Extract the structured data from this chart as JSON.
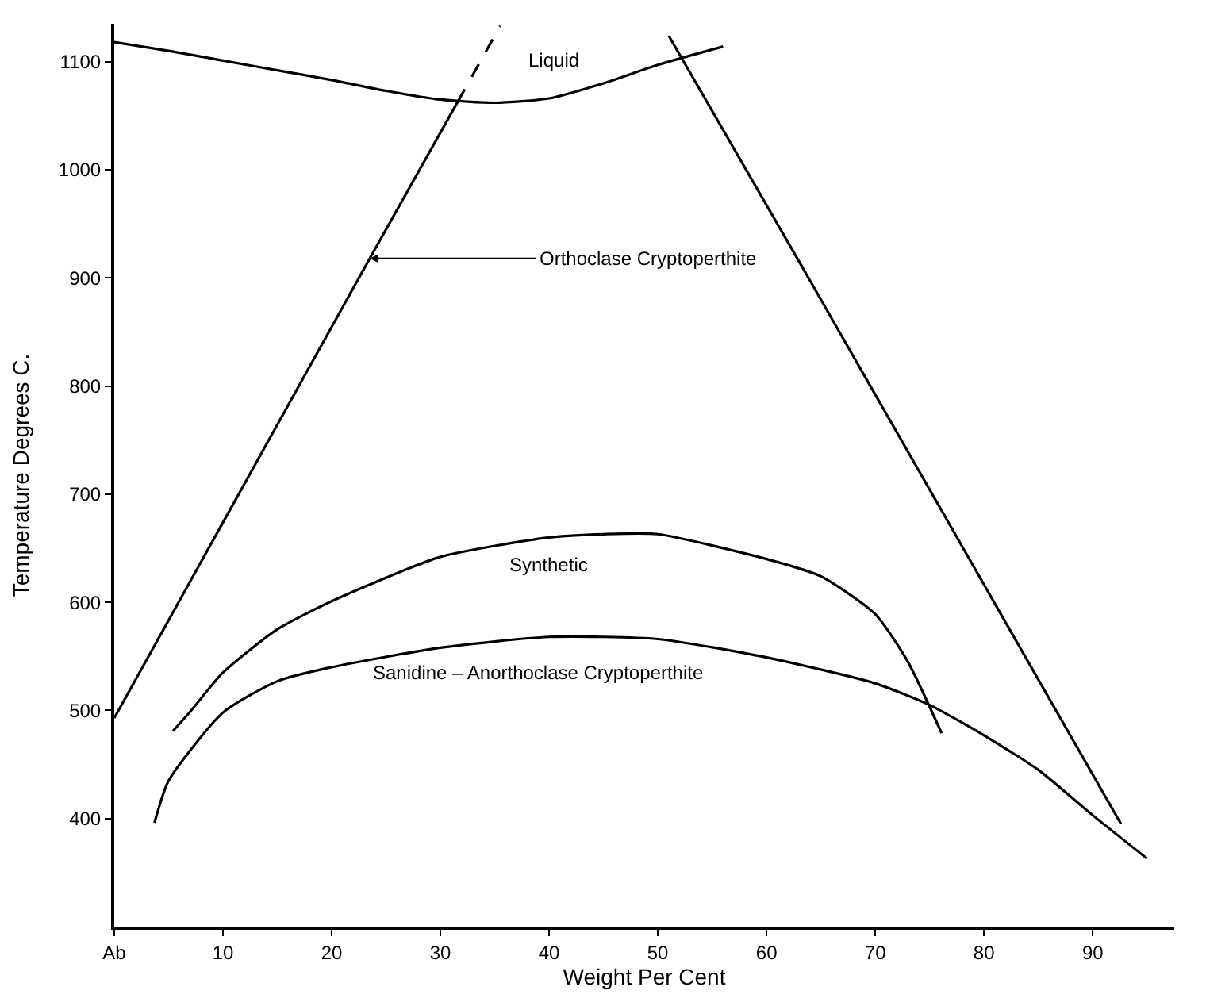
{
  "chart_data": {
    "type": "line",
    "xlabel": "Weight Per Cent",
    "ylabel": "Temperature Degrees C.",
    "xlim": [
      0,
      97.5
    ],
    "ylim": [
      300,
      1135
    ],
    "xticks": [
      {
        "value": 0,
        "label": "Ab"
      },
      10,
      20,
      30,
      40,
      50,
      60,
      70,
      80,
      90
    ],
    "yticks": [
      400,
      500,
      600,
      700,
      800,
      900,
      1000,
      1100
    ],
    "marker": "none",
    "series": [
      {
        "color": "#000000",
        "x": [
          0,
          5,
          10,
          15,
          20,
          25,
          30,
          35,
          40,
          45,
          50,
          56
        ],
        "values": [
          1118,
          1110,
          1101,
          1092,
          1083,
          1073,
          1065,
          1062,
          1066,
          1080,
          1097,
          1114
        ]
      },
      {
        "color": "#000000",
        "x": [
          0,
          23.5,
          31.6
        ],
        "values": [
          493,
          918,
          1063
        ]
      },
      {
        "color": "#000000",
        "line_style": "dashed",
        "x": [
          31.6,
          35.5
        ],
        "values": [
          1063,
          1133
        ]
      },
      {
        "color": "#000000",
        "x": [
          51.0,
          63.0,
          92.6
        ],
        "values": [
          1124,
          915,
          395
        ]
      },
      {
        "color": "#000000",
        "x": [
          5.4,
          7,
          10,
          15,
          20,
          30,
          40,
          45,
          50,
          60,
          65,
          70,
          73,
          76.1
        ],
        "values": [
          481,
          499,
          535,
          575,
          601,
          642,
          660,
          663,
          663,
          640,
          624,
          589,
          545,
          479
        ]
      },
      {
        "color": "#000000",
        "x": [
          3.7,
          5,
          10,
          15,
          20,
          30,
          40,
          50,
          60,
          70,
          75,
          80,
          85,
          90,
          95
        ],
        "values": [
          396,
          435,
          498,
          527,
          540,
          558,
          568,
          566,
          549,
          525,
          505,
          477,
          445,
          403,
          363
        ]
      }
    ],
    "annotations": [
      "Liquid",
      {
        "text": "Orthoclase Cryptoperthite",
        "x": 23.5,
        "y": 918
      },
      "Synthetic",
      "Sanidine – Anorthoclase Cryptoperthite"
    ]
  }
}
